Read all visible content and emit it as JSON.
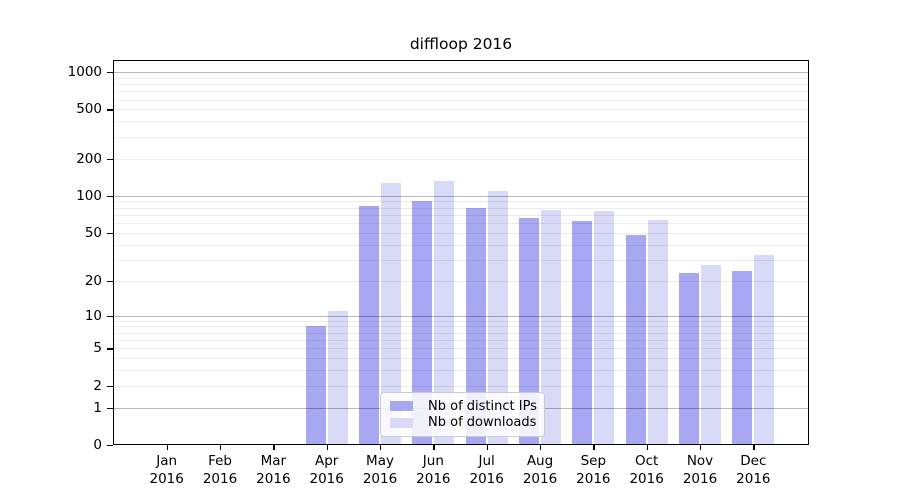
{
  "page": {
    "background_color": "#ffffff",
    "axis_color": "#000000"
  },
  "chart_data": {
    "type": "bar",
    "title": "diffloop 2016",
    "xlabel": "",
    "ylabel": "",
    "categories": [
      "Jan\n2016",
      "Feb\n2016",
      "Mar\n2016",
      "Apr\n2016",
      "May\n2016",
      "Jun\n2016",
      "Jul\n2016",
      "Aug\n2016",
      "Sep\n2016",
      "Oct\n2016",
      "Nov\n2016",
      "Dec\n2016"
    ],
    "series": [
      {
        "name": "Nb of distinct IPs",
        "color": "#a7a7f2",
        "values": [
          0,
          0,
          0,
          8,
          82,
          91,
          80,
          66,
          62,
          48,
          23,
          24
        ]
      },
      {
        "name": "Nb of downloads",
        "color": "#d9d9f8",
        "values": [
          0,
          0,
          0,
          11,
          128,
          131,
          109,
          76,
          75,
          64,
          27,
          33
        ]
      }
    ],
    "y_axis": {
      "scale": "log1p",
      "ticks": [
        0,
        1,
        2,
        5,
        10,
        20,
        50,
        100,
        200,
        500,
        1000
      ],
      "major_gridline_values": [
        1,
        10,
        100,
        1000
      ],
      "ylim": [
        0,
        1270
      ]
    },
    "grid": "on",
    "legend_position": "inside lower center"
  }
}
